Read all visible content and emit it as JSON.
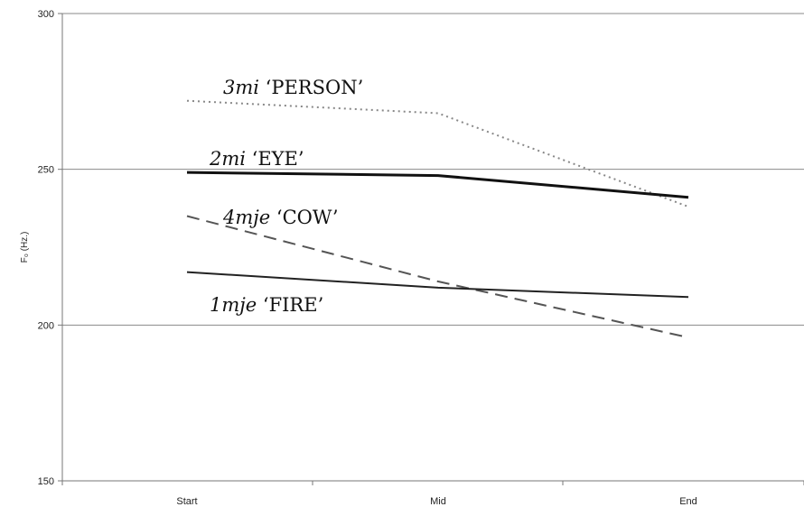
{
  "chart_data": {
    "type": "line",
    "categories": [
      "Start",
      "Mid",
      "End"
    ],
    "ylabel": "F₀ (Hz.)",
    "ylim": [
      150,
      300
    ],
    "yticks": [
      150,
      200,
      250,
      300
    ],
    "grid": true,
    "series": [
      {
        "code": "3mi",
        "word": "‘PERSON’",
        "values": [
          272,
          268,
          238
        ],
        "style": "dotted",
        "color": "#888888"
      },
      {
        "code": "2mi",
        "word": "‘EYE’",
        "values": [
          249,
          248,
          241
        ],
        "style": "solid-thick",
        "color": "#111111"
      },
      {
        "code": "4mje",
        "word": "‘COW’",
        "values": [
          235,
          214,
          196
        ],
        "style": "dashed",
        "color": "#555555"
      },
      {
        "code": "1mje",
        "word": "‘FIRE’",
        "values": [
          217,
          212,
          209
        ],
        "style": "solid",
        "color": "#222222"
      }
    ]
  }
}
